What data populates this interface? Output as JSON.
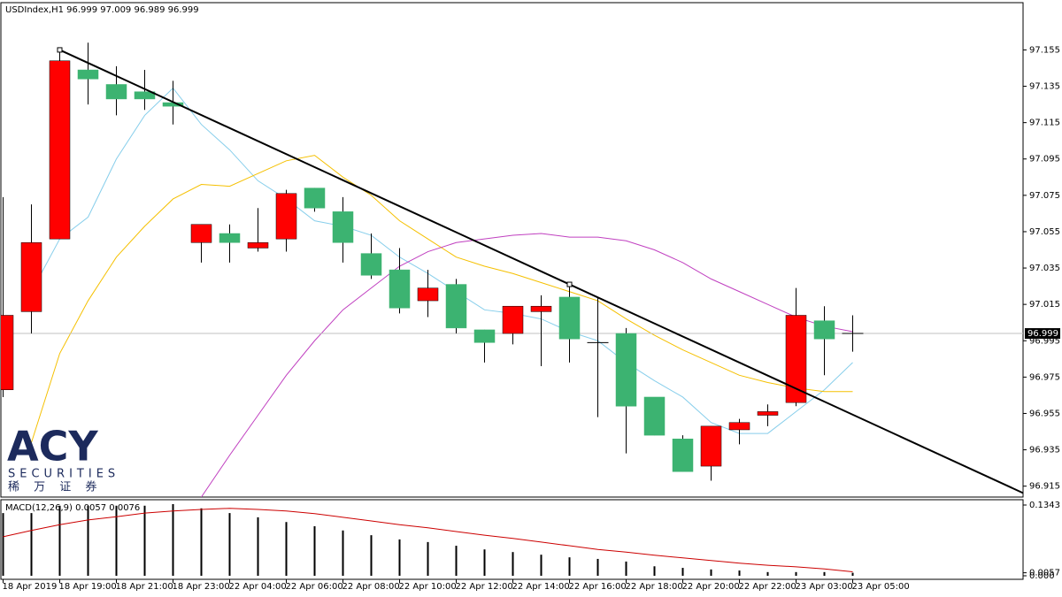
{
  "chart_data": {
    "type": "candlestick",
    "title": "USDIndex,H1  96.999 97.009 96.989 96.999",
    "categories": [
      "18 Apr 2019",
      null,
      "18 Apr 19:00",
      null,
      "18 Apr 21:00",
      null,
      "18 Apr 23:00",
      null,
      "22 Apr 04:00",
      null,
      "22 Apr 06:00",
      null,
      "22 Apr 08:00",
      null,
      "22 Apr 10:00",
      null,
      "22 Apr 12:00",
      null,
      "22 Apr 14:00",
      null,
      "22 Apr 16:00",
      null,
      "22 Apr 18:00",
      null,
      "22 Apr 20:00",
      null,
      "22 Apr 22:00",
      null,
      "23 Apr 03:00",
      null,
      "23 Apr 05:00"
    ],
    "open": [
      96.968,
      97.011,
      97.051,
      97.144,
      97.136,
      97.132,
      97.126,
      97.049,
      97.054,
      97.046,
      97.051,
      97.079,
      97.066,
      97.043,
      97.034,
      97.017,
      97.026,
      97.001,
      96.999,
      97.011,
      97.019,
      96.994,
      96.999,
      96.964,
      96.941,
      96.926,
      96.946,
      96.954,
      96.961,
      97.006,
      96.999
    ],
    "high": [
      97.074,
      97.07,
      97.155,
      97.159,
      97.146,
      97.144,
      97.138,
      97.059,
      97.059,
      97.068,
      97.078,
      97.079,
      97.074,
      97.054,
      97.046,
      97.034,
      97.029,
      97.001,
      97.014,
      97.02,
      97.027,
      97.019,
      97.002,
      96.964,
      96.943,
      96.948,
      96.952,
      96.96,
      97.024,
      97.014,
      97.009
    ],
    "low": [
      96.964,
      96.999,
      97.051,
      97.125,
      97.119,
      97.122,
      97.114,
      97.038,
      97.038,
      97.044,
      97.044,
      97.066,
      97.038,
      97.029,
      97.01,
      97.008,
      96.999,
      96.983,
      96.993,
      96.981,
      96.983,
      96.953,
      96.933,
      96.943,
      96.923,
      96.918,
      96.938,
      96.948,
      96.959,
      96.976,
      96.989
    ],
    "close": [
      97.009,
      97.049,
      97.149,
      97.139,
      97.128,
      97.128,
      97.124,
      97.059,
      97.049,
      97.049,
      97.076,
      97.068,
      97.049,
      97.031,
      97.013,
      97.024,
      97.002,
      96.994,
      97.014,
      97.014,
      96.996,
      96.994,
      96.959,
      96.943,
      96.923,
      96.948,
      96.95,
      96.956,
      97.009,
      96.996,
      96.999
    ],
    "up_color": "#ff0000",
    "down_color": "#3cb371",
    "ylim": [
      96.909,
      97.181
    ],
    "yticks": [
      97.155,
      97.135,
      97.115,
      97.095,
      97.075,
      97.055,
      97.035,
      97.015,
      96.995,
      96.975,
      96.955,
      96.935,
      96.915
    ],
    "price_line": 96.999,
    "moving_averages": [
      {
        "color": "#87ceeb",
        "values": [
          null,
          97.022,
          97.051,
          97.063,
          97.095,
          97.119,
          97.134,
          97.114,
          97.1,
          97.083,
          97.073,
          97.061,
          97.058,
          97.053,
          97.041,
          97.032,
          97.022,
          97.012,
          97.01,
          97.007,
          97.0,
          96.995,
          96.983,
          96.973,
          96.964,
          96.95,
          96.944,
          96.944,
          96.956,
          96.968,
          96.983
        ]
      },
      {
        "color": "#f5c000",
        "values": [
          null,
          96.939,
          96.988,
          97.017,
          97.041,
          97.058,
          97.073,
          97.081,
          97.08,
          97.087,
          97.094,
          97.097,
          97.085,
          97.075,
          97.061,
          97.051,
          97.041,
          97.036,
          97.032,
          97.027,
          97.022,
          97.017,
          97.007,
          96.998,
          96.99,
          96.983,
          96.976,
          96.972,
          96.969,
          96.967,
          96.967
        ]
      },
      {
        "color": "#c040c0",
        "values": [
          null,
          null,
          null,
          null,
          null,
          null,
          null,
          96.909,
          96.932,
          96.954,
          96.976,
          96.995,
          97.012,
          97.024,
          97.036,
          97.044,
          97.049,
          97.051,
          97.053,
          97.054,
          97.052,
          97.052,
          97.05,
          97.045,
          97.038,
          97.029,
          97.022,
          97.015,
          97.008,
          97.003,
          97.0
        ]
      }
    ],
    "trendline": {
      "color": "#000000",
      "points": [
        [
          2,
          97.155
        ],
        [
          20,
          97.026
        ]
      ]
    },
    "macd": {
      "title": "MACD(12,26,9) 0.0057 0.0076",
      "histogram": [
        0.119,
        0.119,
        0.133,
        0.133,
        0.133,
        0.133,
        0.136,
        0.128,
        0.119,
        0.111,
        0.102,
        0.094,
        0.086,
        0.077,
        0.069,
        0.064,
        0.057,
        0.05,
        0.045,
        0.04,
        0.035,
        0.032,
        0.027,
        0.018,
        0.015,
        0.012,
        0.01,
        0.007,
        0.007,
        0.007,
        0.0057
      ],
      "signal": [
        0.074,
        0.086,
        0.097,
        0.106,
        0.112,
        0.119,
        0.123,
        0.126,
        0.128,
        0.126,
        0.123,
        0.118,
        0.111,
        0.104,
        0.097,
        0.091,
        0.084,
        0.077,
        0.071,
        0.064,
        0.057,
        0.05,
        0.045,
        0.039,
        0.034,
        0.029,
        0.024,
        0.02,
        0.017,
        0.013,
        0.0076
      ],
      "histogram_color": "#000000",
      "signal_color": "#cc0000",
      "ylim": [
        0,
        0.1343
      ],
      "yticks": [
        0.1343,
        0.0057,
        {
          "value": 0,
          "label": "0.000"
        }
      ]
    },
    "logo": {
      "name": "ACY",
      "tagline": "SECURITIES",
      "chinese": "稀 万 证 券"
    }
  }
}
